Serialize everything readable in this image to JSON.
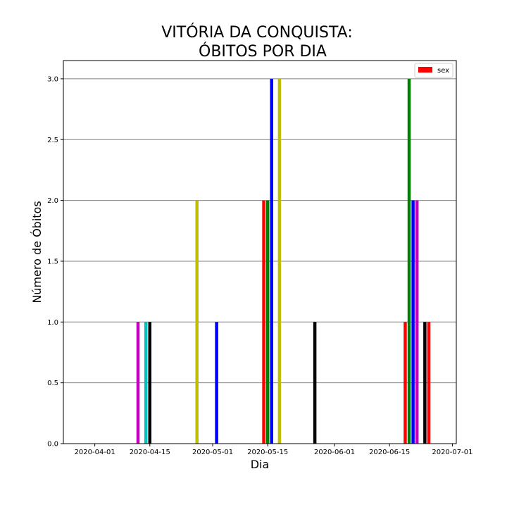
{
  "chart_data": {
    "type": "bar",
    "title_line1": "VITÓRIA DA CONQUISTA:",
    "title_line2": "ÓBITOS POR DIA",
    "xlabel": "Dia",
    "ylabel": "Número de Óbitos",
    "x_is_date": true,
    "xlim": [
      "2020-03-24",
      "2020-07-02"
    ],
    "ylim": [
      0,
      3.15
    ],
    "x_ticks": [
      "2020-04-01",
      "2020-04-15",
      "2020-05-01",
      "2020-05-15",
      "2020-06-01",
      "2020-06-15",
      "2020-07-01"
    ],
    "y_ticks": [
      "0.0",
      "0.5",
      "1.0",
      "1.5",
      "2.0",
      "2.5",
      "3.0"
    ],
    "grid": "horizontal",
    "legend": {
      "placement": "top-right",
      "entries": [
        {
          "label": "sex",
          "color": "#ff0000"
        }
      ]
    },
    "bars": [
      {
        "date": "2020-04-12",
        "value": 1,
        "color": "#bf00bf"
      },
      {
        "date": "2020-04-14",
        "value": 1,
        "color": "#00bfbf"
      },
      {
        "date": "2020-04-15",
        "value": 1,
        "color": "#000000"
      },
      {
        "date": "2020-04-27",
        "value": 2,
        "color": "#bfbf00"
      },
      {
        "date": "2020-05-02",
        "value": 1,
        "color": "#0000ff"
      },
      {
        "date": "2020-05-14",
        "value": 2,
        "color": "#ff0000"
      },
      {
        "date": "2020-05-15",
        "value": 2,
        "color": "#008000"
      },
      {
        "date": "2020-05-16",
        "value": 3,
        "color": "#0000ff"
      },
      {
        "date": "2020-05-18",
        "value": 3,
        "color": "#bfbf00"
      },
      {
        "date": "2020-05-27",
        "value": 1,
        "color": "#000000"
      },
      {
        "date": "2020-06-19",
        "value": 1,
        "color": "#ff0000"
      },
      {
        "date": "2020-06-20",
        "value": 3,
        "color": "#008000"
      },
      {
        "date": "2020-06-21",
        "value": 2,
        "color": "#0000ff"
      },
      {
        "date": "2020-06-22",
        "value": 2,
        "color": "#bf00bf"
      },
      {
        "date": "2020-06-24",
        "value": 1,
        "color": "#000000"
      },
      {
        "date": "2020-06-25",
        "value": 1,
        "color": "#ff0000"
      }
    ]
  }
}
